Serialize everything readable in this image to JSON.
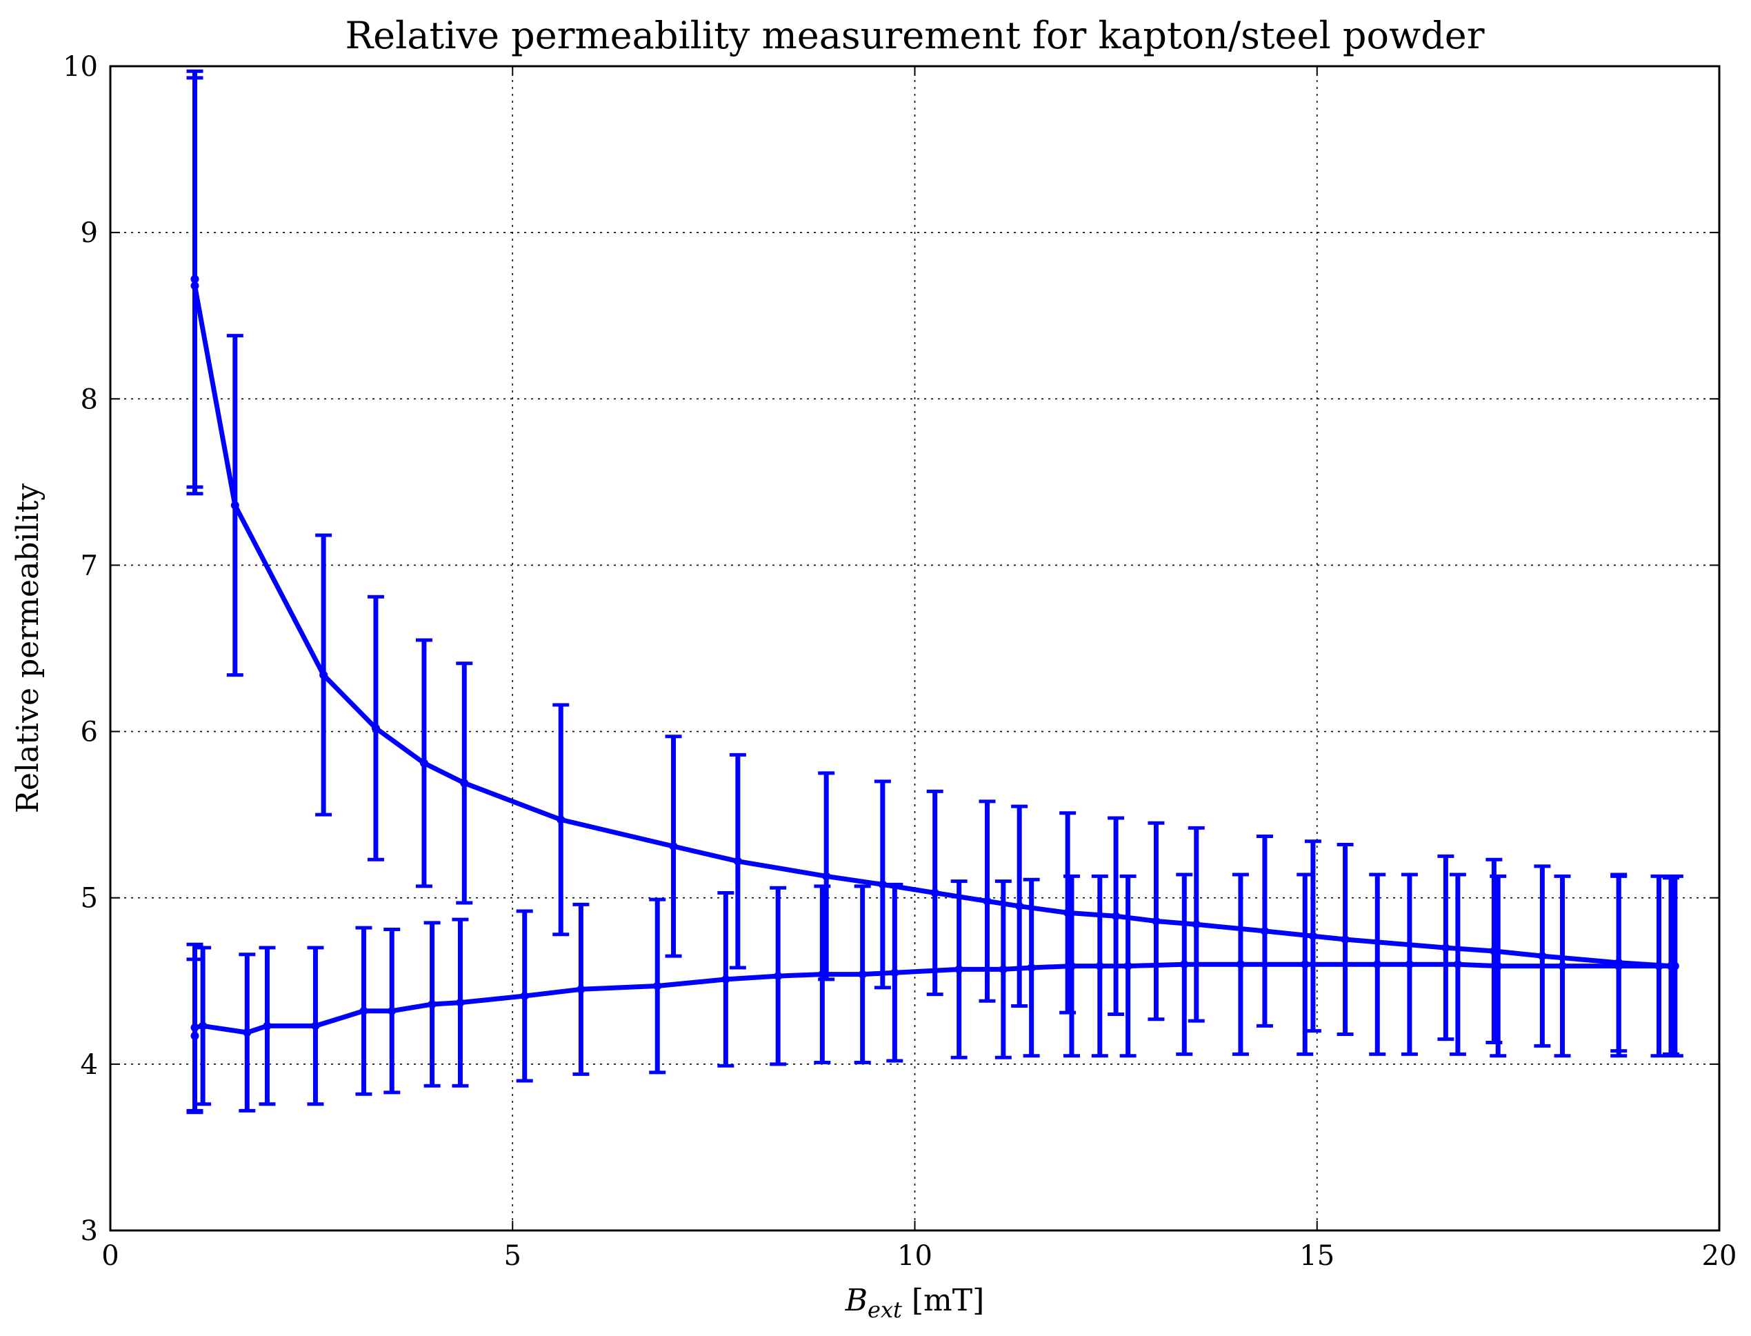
{
  "chart_data": {
    "type": "line",
    "title": "Relative permeability measurement for kapton/steel powder",
    "xlabel_main": "B",
    "xlabel_sub": "ext",
    "xlabel_unit": " [mT]",
    "ylabel": "Relative permeability",
    "xlim": [
      0,
      20
    ],
    "ylim": [
      3,
      10
    ],
    "xticks": [
      0,
      5,
      10,
      15,
      20
    ],
    "yticks": [
      3,
      4,
      5,
      6,
      7,
      8,
      9,
      10
    ],
    "xtick_labels": [
      "0",
      "5",
      "10",
      "15",
      "20"
    ],
    "ytick_labels": [
      "3",
      "4",
      "5",
      "6",
      "7",
      "8",
      "9",
      "10"
    ],
    "grid": true,
    "color": "#0000ff",
    "series": [
      {
        "x": [
          1.05,
          1.05,
          1.55,
          2.65,
          3.3,
          3.9,
          4.4,
          5.6,
          7.0,
          7.8,
          8.9,
          9.6,
          10.25,
          10.9,
          11.3,
          11.9,
          12.5,
          13.0,
          13.5,
          14.35,
          14.95,
          15.35,
          16.6,
          17.2,
          17.8,
          18.75,
          19.4
        ],
        "y": [
          8.72,
          8.68,
          7.36,
          6.34,
          6.02,
          5.81,
          5.69,
          5.47,
          5.31,
          5.22,
          5.13,
          5.08,
          5.03,
          4.98,
          4.95,
          4.91,
          4.89,
          4.86,
          4.84,
          4.8,
          4.77,
          4.75,
          4.7,
          4.68,
          4.65,
          4.61,
          4.59
        ],
        "err": [
          1.25,
          1.25,
          1.02,
          0.84,
          0.79,
          0.74,
          0.72,
          0.69,
          0.66,
          0.64,
          0.62,
          0.62,
          0.61,
          0.6,
          0.6,
          0.6,
          0.59,
          0.59,
          0.58,
          0.57,
          0.57,
          0.57,
          0.55,
          0.55,
          0.54,
          0.53,
          0.53
        ]
      },
      {
        "x": [
          1.05,
          1.05,
          1.15,
          1.7,
          1.95,
          2.55,
          3.15,
          3.5,
          4.0,
          4.35,
          5.15,
          5.85,
          6.8,
          7.65,
          8.3,
          8.85,
          9.35,
          9.75,
          10.55,
          11.1,
          11.45,
          11.95,
          12.3,
          12.65,
          13.35,
          14.05,
          14.85,
          15.75,
          16.15,
          16.75,
          17.25,
          18.05,
          18.75,
          19.25,
          19.45
        ],
        "y": [
          4.17,
          4.22,
          4.23,
          4.19,
          4.23,
          4.23,
          4.32,
          4.32,
          4.36,
          4.37,
          4.41,
          4.45,
          4.47,
          4.51,
          4.53,
          4.54,
          4.54,
          4.55,
          4.57,
          4.57,
          4.58,
          4.59,
          4.59,
          4.59,
          4.6,
          4.6,
          4.6,
          4.6,
          4.6,
          4.6,
          4.59,
          4.59,
          4.59,
          4.59,
          4.59
        ],
        "err": [
          0.46,
          0.5,
          0.47,
          0.47,
          0.47,
          0.47,
          0.5,
          0.49,
          0.49,
          0.5,
          0.51,
          0.51,
          0.52,
          0.52,
          0.53,
          0.53,
          0.53,
          0.53,
          0.53,
          0.53,
          0.53,
          0.54,
          0.54,
          0.54,
          0.54,
          0.54,
          0.54,
          0.54,
          0.54,
          0.54,
          0.54,
          0.54,
          0.54,
          0.54,
          0.54
        ]
      }
    ]
  }
}
